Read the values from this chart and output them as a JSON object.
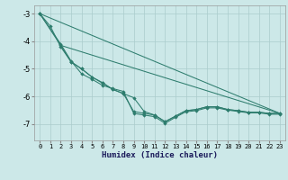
{
  "xlabel": "Humidex (Indice chaleur)",
  "background_color": "#cce8e8",
  "grid_color": "#aacccc",
  "line_color": "#2e7d6e",
  "xlim": [
    -0.5,
    23.5
  ],
  "ylim": [
    -7.6,
    -2.7
  ],
  "yticks": [
    -7,
    -6,
    -5,
    -4,
    -3
  ],
  "xticks": [
    0,
    1,
    2,
    3,
    4,
    5,
    6,
    7,
    8,
    9,
    10,
    11,
    12,
    13,
    14,
    15,
    16,
    17,
    18,
    19,
    20,
    21,
    22,
    23
  ],
  "series1_x": [
    0,
    1,
    2,
    3,
    4,
    5,
    6,
    7,
    8,
    9,
    10,
    11,
    12,
    13,
    14,
    15,
    16,
    17,
    18,
    19,
    20,
    21,
    22,
    23
  ],
  "series1_y": [
    -3.0,
    -3.45,
    -4.2,
    -4.75,
    -5.0,
    -5.3,
    -5.5,
    -5.75,
    -5.9,
    -6.05,
    -6.55,
    -6.68,
    -6.92,
    -6.72,
    -6.52,
    -6.48,
    -6.38,
    -6.38,
    -6.48,
    -6.52,
    -6.58,
    -6.58,
    -6.62,
    -6.62
  ],
  "series2_x": [
    0,
    2,
    3,
    4,
    5,
    6,
    7,
    8,
    9,
    10,
    11,
    12,
    13,
    14,
    15,
    16,
    17,
    18,
    19,
    20,
    21,
    22,
    23
  ],
  "series2_y": [
    -3.0,
    -4.15,
    -4.75,
    -5.0,
    -5.3,
    -5.52,
    -5.75,
    -5.9,
    -6.55,
    -6.62,
    -6.68,
    -6.92,
    -6.72,
    -6.52,
    -6.48,
    -6.38,
    -6.38,
    -6.48,
    -6.52,
    -6.58,
    -6.58,
    -6.62,
    -6.62
  ],
  "series3_x": [
    0,
    2,
    3,
    4,
    5,
    6,
    7,
    8,
    9,
    10,
    11,
    12,
    13,
    14,
    15,
    16,
    17,
    18,
    19,
    20,
    21,
    22,
    23
  ],
  "series3_y": [
    -3.0,
    -4.1,
    -4.72,
    -5.18,
    -5.38,
    -5.6,
    -5.72,
    -5.82,
    -6.62,
    -6.68,
    -6.74,
    -6.98,
    -6.76,
    -6.56,
    -6.52,
    -6.42,
    -6.42,
    -6.5,
    -6.55,
    -6.6,
    -6.6,
    -6.65,
    -6.65
  ],
  "line1_x": [
    0,
    23
  ],
  "line1_y": [
    -3.0,
    -6.62
  ],
  "line2_x": [
    2,
    23
  ],
  "line2_y": [
    -4.15,
    -6.62
  ]
}
